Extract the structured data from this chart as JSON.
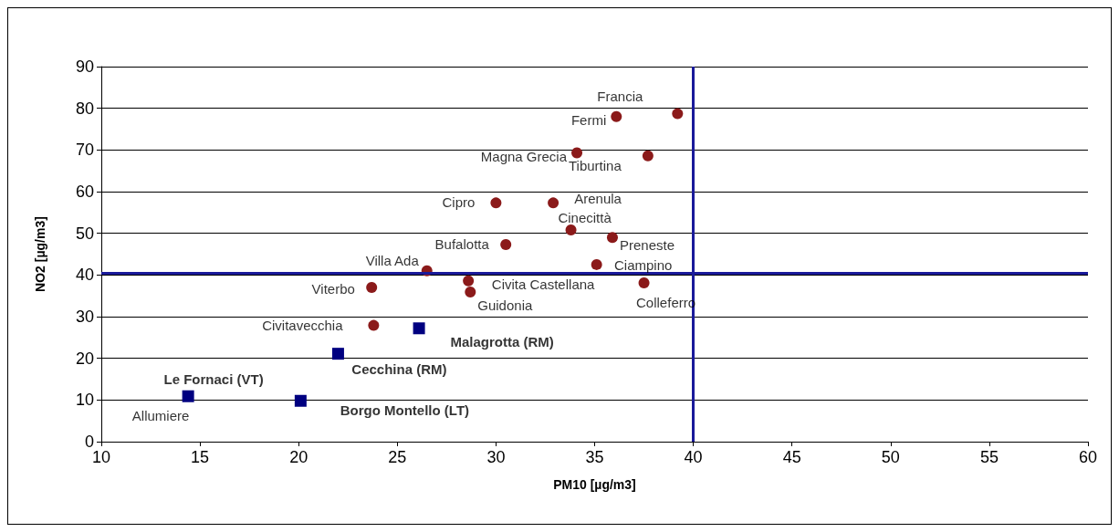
{
  "chart_data": {
    "type": "scatter",
    "xlabel": "PM10 [µg/m3]",
    "ylabel": "NO2 [µg/m3]",
    "xlim": [
      10,
      60
    ],
    "xticks": [
      10,
      15,
      20,
      25,
      30,
      35,
      40,
      45,
      50,
      55,
      60
    ],
    "ylim": [
      0,
      90
    ],
    "yticks": [
      0,
      10,
      20,
      30,
      40,
      50,
      60,
      70,
      80,
      90
    ],
    "grid": "y",
    "series": [
      {
        "color": "#8b1a1a",
        "marker": "circle",
        "x": [
          39.2,
          36.1,
          34.1,
          37.7,
          30.0,
          32.9,
          33.8,
          30.5,
          35.9,
          35.1,
          26.5,
          28.6,
          28.7,
          37.5,
          23.7,
          23.8
        ],
        "values": [
          78.7,
          78.0,
          69.3,
          68.6,
          57.3,
          57.3,
          50.8,
          47.3,
          49.0,
          42.5,
          41.0,
          38.6,
          35.9,
          38.1,
          37.0,
          27.9
        ]
      },
      {
        "color": "#000080",
        "marker": "square",
        "x": [
          14.4,
          20.1,
          22.0,
          26.1
        ],
        "values": [
          10.9,
          9.8,
          21.1,
          27.2
        ]
      }
    ],
    "ref_lines": [
      {
        "axis": "x",
        "value": 40,
        "color": "#1a1a9a"
      },
      {
        "axis": "y",
        "value": 40.5,
        "color": "#1a1a9a"
      }
    ],
    "annotations": [
      {
        "text": "Francia",
        "x": 39.2,
        "y": 78.7
      },
      {
        "text": "Fermi",
        "x": 36.1,
        "y": 78.0
      },
      {
        "text": "Magna Grecia",
        "x": 34.1,
        "y": 69.3
      },
      {
        "text": "Tiburtina",
        "x": 37.7,
        "y": 68.6
      },
      {
        "text": "Cipro",
        "x": 30.0,
        "y": 57.3
      },
      {
        "text": "Arenula",
        "x": 32.9,
        "y": 57.3
      },
      {
        "text": "Cinecittà",
        "x": 33.8,
        "y": 50.8
      },
      {
        "text": "Bufalotta",
        "x": 30.5,
        "y": 47.3
      },
      {
        "text": "Preneste",
        "x": 35.9,
        "y": 49.0
      },
      {
        "text": "Ciampino",
        "x": 35.1,
        "y": 42.5
      },
      {
        "text": "Villa Ada",
        "x": 26.5,
        "y": 41.0
      },
      {
        "text": "Civita Castellana",
        "x": 28.6,
        "y": 38.6
      },
      {
        "text": "Guidonia",
        "x": 28.7,
        "y": 35.9
      },
      {
        "text": "Colleferro",
        "x": 37.5,
        "y": 38.1
      },
      {
        "text": "Viterbo",
        "x": 23.7,
        "y": 37.0
      },
      {
        "text": "Civitavecchia",
        "x": 23.8,
        "y": 27.9
      },
      {
        "text": "Allumiere",
        "x": 14.4,
        "y": 10.9
      },
      {
        "text": "Le Fornaci (VT)",
        "x": 14.4,
        "y": 10.9
      },
      {
        "text": "Borgo Montello (LT)",
        "x": 20.1,
        "y": 9.8
      },
      {
        "text": "Cecchina (RM)",
        "x": 22.0,
        "y": 21.1
      },
      {
        "text": "Malagrotta (RM)",
        "x": 26.1,
        "y": 27.2
      }
    ]
  }
}
